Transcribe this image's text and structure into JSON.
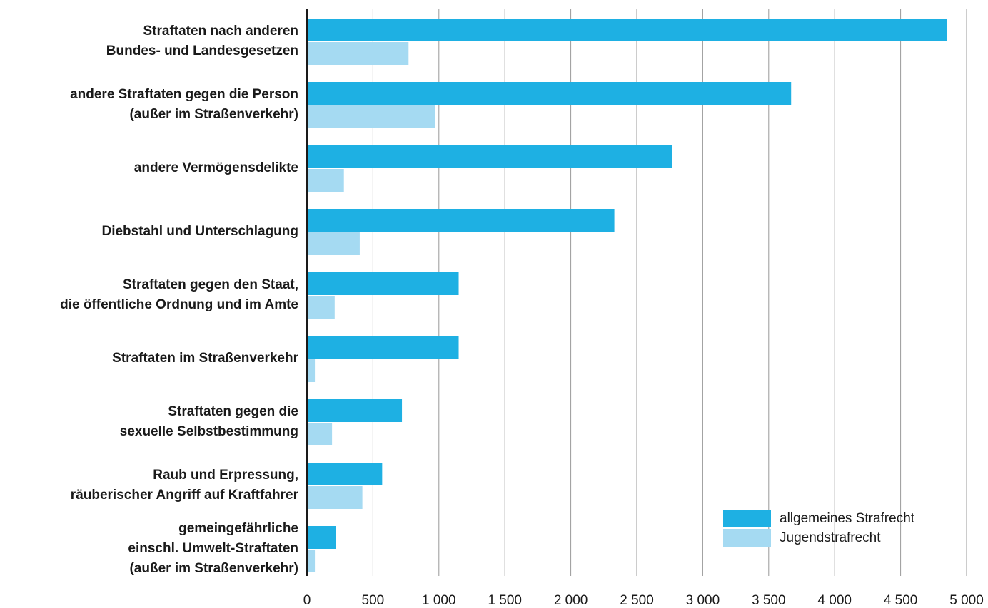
{
  "chart_data": {
    "type": "barh",
    "categories": [
      "Straftaten nach anderen\nBundes- und Landesgesetzen",
      "andere Straftaten gegen die Person\n(außer im Straßenverkehr)",
      "andere Vermögensdelikte",
      "Diebstahl und Unterschlagung",
      "Straftaten gegen den Staat,\ndie öffentliche Ordnung und im Amte",
      "Straftaten im Straßenverkehr",
      "Straftaten gegen die\nsexuelle Selbstbestimmung",
      "Raub und Erpressung,\nräuberischer Angriff auf Kraftfahrer",
      "gemeingefährliche\neinschl. Umwelt-Straftaten\n(außer im Straßenverkehr)"
    ],
    "series": [
      {
        "name": "allgemeines Strafrecht",
        "color": "#1eb0e3",
        "values": [
          4850,
          3670,
          2770,
          2330,
          1150,
          1150,
          720,
          570,
          220
        ]
      },
      {
        "name": "Jugendstrafrecht",
        "color": "#a5daf2",
        "values": [
          770,
          970,
          280,
          400,
          210,
          60,
          190,
          420,
          60
        ]
      }
    ],
    "xlim": [
      0,
      5000
    ],
    "xticks": [
      0,
      500,
      {
        "value": 1000,
        "label": "1 000"
      },
      {
        "value": 1500,
        "label": "1 500"
      },
      {
        "value": 2000,
        "label": "2 000"
      },
      {
        "value": 2500,
        "label": "2 500"
      },
      {
        "value": 3000,
        "label": "3 000"
      },
      {
        "value": 3500,
        "label": "3 500"
      },
      {
        "value": 4000,
        "label": "4 000"
      },
      {
        "value": 4500,
        "label": "4 500"
      },
      {
        "value": 5000,
        "label": "5 000"
      }
    ],
    "grid": true,
    "legend": "lower right"
  }
}
